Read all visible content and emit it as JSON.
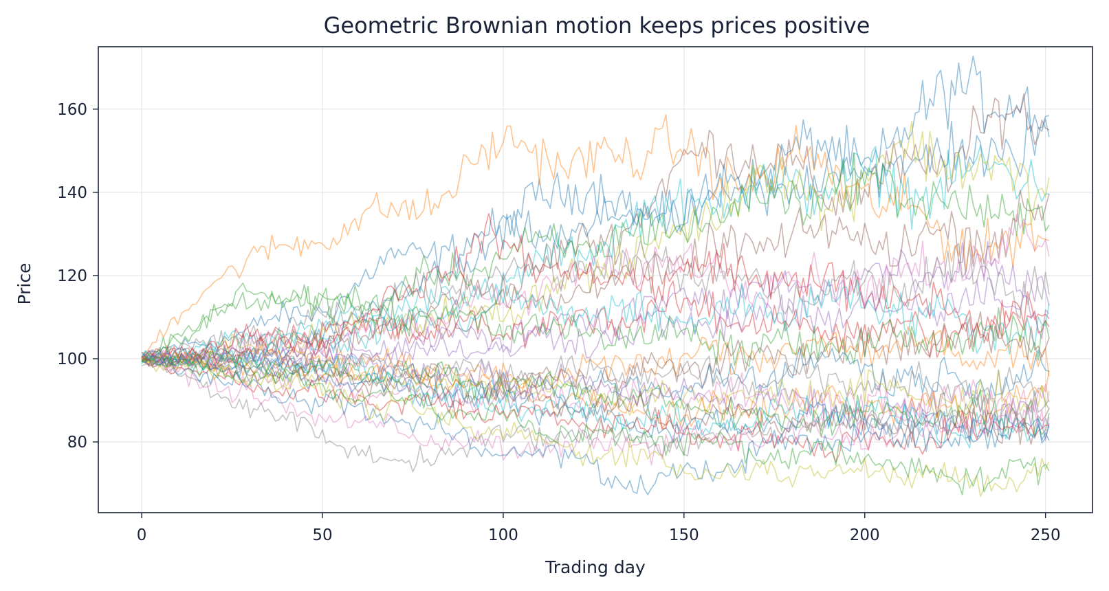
{
  "chart_data": {
    "type": "line",
    "title": "Geometric Brownian motion keeps prices positive",
    "xlabel": "Trading day",
    "ylabel": "Price",
    "xlim": [
      -12,
      263
    ],
    "ylim": [
      63,
      175
    ],
    "xticks": [
      0,
      50,
      100,
      150,
      200,
      250
    ],
    "yticks": [
      80,
      100,
      120,
      140,
      160
    ],
    "grid": true,
    "legend": "none",
    "n_days": 252,
    "colors": [
      "#1f77b4",
      "#ff7f0e",
      "#2ca02c",
      "#d62728",
      "#9467bd",
      "#8c564b",
      "#e377c2",
      "#7f7f7f",
      "#bcbd22",
      "#17becf"
    ],
    "series": [
      {
        "color": "#1f77b4",
        "points": [
          [
            0,
            100
          ],
          [
            50,
            112
          ],
          [
            70,
            124
          ],
          [
            100,
            130
          ],
          [
            110,
            142
          ],
          [
            150,
            134
          ],
          [
            180,
            150
          ],
          [
            200,
            148
          ],
          [
            215,
            156
          ],
          [
            228,
            168
          ],
          [
            251,
            155
          ]
        ]
      },
      {
        "color": "#8c564b",
        "points": [
          [
            0,
            100
          ],
          [
            50,
            104
          ],
          [
            100,
            118
          ],
          [
            130,
            130
          ],
          [
            160,
            153
          ],
          [
            190,
            140
          ],
          [
            215,
            145
          ],
          [
            240,
            158
          ],
          [
            251,
            156
          ]
        ]
      },
      {
        "color": "#17becf",
        "points": [
          [
            0,
            100
          ],
          [
            50,
            108
          ],
          [
            100,
            118
          ],
          [
            150,
            138
          ],
          [
            190,
            143
          ],
          [
            220,
            141
          ],
          [
            240,
            146
          ],
          [
            251,
            144
          ]
        ]
      },
      {
        "color": "#1f77b4",
        "points": [
          [
            0,
            100
          ],
          [
            40,
            101
          ],
          [
            100,
            128
          ],
          [
            150,
            136
          ],
          [
            200,
            146
          ],
          [
            230,
            149
          ],
          [
            251,
            153
          ]
        ]
      },
      {
        "color": "#ff7f0e",
        "points": [
          [
            0,
            100
          ],
          [
            20,
            120
          ],
          [
            50,
            130
          ],
          [
            80,
            138
          ],
          [
            105,
            154
          ],
          [
            120,
            145
          ],
          [
            145,
            153
          ],
          [
            160,
            142
          ],
          [
            180,
            148
          ],
          [
            200,
            141
          ],
          [
            220,
            130
          ],
          [
            240,
            127
          ],
          [
            251,
            129
          ]
        ]
      },
      {
        "color": "#bcbd22",
        "points": [
          [
            0,
            100
          ],
          [
            50,
            106
          ],
          [
            100,
            112
          ],
          [
            150,
            130
          ],
          [
            170,
            145
          ],
          [
            190,
            138
          ],
          [
            215,
            152
          ],
          [
            240,
            142
          ],
          [
            251,
            142
          ]
        ]
      },
      {
        "color": "#2ca02c",
        "points": [
          [
            0,
            100
          ],
          [
            30,
            115
          ],
          [
            60,
            113
          ],
          [
            100,
            125
          ],
          [
            140,
            130
          ],
          [
            180,
            140
          ],
          [
            210,
            142
          ],
          [
            230,
            134
          ],
          [
            251,
            136
          ]
        ]
      },
      {
        "color": "#8c564b",
        "points": [
          [
            0,
            100
          ],
          [
            40,
            103
          ],
          [
            100,
            112
          ],
          [
            140,
            121
          ],
          [
            180,
            130
          ],
          [
            220,
            128
          ],
          [
            240,
            132
          ],
          [
            251,
            135
          ]
        ]
      },
      {
        "color": "#e377c2",
        "points": [
          [
            0,
            100
          ],
          [
            50,
            104
          ],
          [
            100,
            114
          ],
          [
            140,
            124
          ],
          [
            180,
            118
          ],
          [
            220,
            120
          ],
          [
            240,
            128
          ],
          [
            251,
            130
          ]
        ]
      },
      {
        "color": "#9467bd",
        "points": [
          [
            0,
            100
          ],
          [
            50,
            102
          ],
          [
            100,
            106
          ],
          [
            150,
            114
          ],
          [
            200,
            119
          ],
          [
            230,
            121
          ],
          [
            251,
            118
          ]
        ]
      },
      {
        "color": "#7f7f7f",
        "points": [
          [
            0,
            100
          ],
          [
            50,
            109
          ],
          [
            100,
            121
          ],
          [
            140,
            123
          ],
          [
            180,
            115
          ],
          [
            220,
            120
          ],
          [
            251,
            118
          ]
        ]
      },
      {
        "color": "#d62728",
        "points": [
          [
            0,
            100
          ],
          [
            50,
            104
          ],
          [
            95,
            128
          ],
          [
            130,
            118
          ],
          [
            160,
            122
          ],
          [
            200,
            116
          ],
          [
            230,
            110
          ],
          [
            251,
            109
          ]
        ]
      },
      {
        "color": "#d62728",
        "points": [
          [
            0,
            100
          ],
          [
            40,
            107
          ],
          [
            100,
            107
          ],
          [
            150,
            112
          ],
          [
            190,
            107
          ],
          [
            220,
            106
          ],
          [
            251,
            108
          ]
        ]
      },
      {
        "color": "#9467bd",
        "points": [
          [
            0,
            100
          ],
          [
            50,
            100
          ],
          [
            100,
            103
          ],
          [
            150,
            108
          ],
          [
            200,
            112
          ],
          [
            251,
            113
          ]
        ]
      },
      {
        "color": "#17becf",
        "points": [
          [
            0,
            100
          ],
          [
            50,
            104
          ],
          [
            100,
            113
          ],
          [
            150,
            110
          ],
          [
            200,
            115
          ],
          [
            230,
            107
          ],
          [
            251,
            108
          ]
        ]
      },
      {
        "color": "#ff7f0e",
        "points": [
          [
            0,
            100
          ],
          [
            50,
            101
          ],
          [
            100,
            95
          ],
          [
            150,
            100
          ],
          [
            200,
            104
          ],
          [
            230,
            101
          ],
          [
            251,
            99
          ]
        ]
      },
      {
        "color": "#2ca02c",
        "points": [
          [
            0,
            100
          ],
          [
            30,
            116
          ],
          [
            80,
            110
          ],
          [
            130,
            106
          ],
          [
            170,
            103
          ],
          [
            220,
            104
          ],
          [
            251,
            107
          ]
        ]
      },
      {
        "color": "#8c564b",
        "points": [
          [
            0,
            100
          ],
          [
            50,
            97
          ],
          [
            100,
            94
          ],
          [
            150,
            98
          ],
          [
            200,
            103
          ],
          [
            240,
            105
          ],
          [
            251,
            106
          ]
        ]
      },
      {
        "color": "#1f77b4",
        "points": [
          [
            0,
            100
          ],
          [
            50,
            98
          ],
          [
            100,
            92
          ],
          [
            150,
            93
          ],
          [
            190,
            100
          ],
          [
            220,
            94
          ],
          [
            251,
            97
          ]
        ]
      },
      {
        "color": "#7f7f7f",
        "points": [
          [
            0,
            100
          ],
          [
            50,
            100
          ],
          [
            100,
            97
          ],
          [
            150,
            96
          ],
          [
            200,
            94
          ],
          [
            230,
            93
          ],
          [
            251,
            92
          ]
        ]
      },
      {
        "color": "#bcbd22",
        "points": [
          [
            0,
            100
          ],
          [
            50,
            96
          ],
          [
            100,
            93
          ],
          [
            150,
            90
          ],
          [
            200,
            93
          ],
          [
            230,
            90
          ],
          [
            251,
            92
          ]
        ]
      },
      {
        "color": "#e377c2",
        "points": [
          [
            0,
            100
          ],
          [
            50,
            94
          ],
          [
            100,
            90
          ],
          [
            150,
            92
          ],
          [
            200,
            89
          ],
          [
            230,
            91
          ],
          [
            251,
            89
          ]
        ]
      },
      {
        "color": "#ff7f0e",
        "points": [
          [
            0,
            100
          ],
          [
            50,
            97
          ],
          [
            100,
            93
          ],
          [
            150,
            87
          ],
          [
            200,
            90
          ],
          [
            230,
            88
          ],
          [
            251,
            93
          ]
        ]
      },
      {
        "color": "#9467bd",
        "points": [
          [
            0,
            100
          ],
          [
            50,
            100
          ],
          [
            100,
            95
          ],
          [
            150,
            91
          ],
          [
            200,
            87
          ],
          [
            230,
            85
          ],
          [
            251,
            86
          ]
        ]
      },
      {
        "color": "#2ca02c",
        "points": [
          [
            0,
            100
          ],
          [
            50,
            98
          ],
          [
            100,
            94
          ],
          [
            150,
            89
          ],
          [
            180,
            84
          ],
          [
            210,
            88
          ],
          [
            230,
            86
          ],
          [
            251,
            87
          ]
        ]
      },
      {
        "color": "#8c564b",
        "points": [
          [
            0,
            100
          ],
          [
            50,
            96
          ],
          [
            100,
            91
          ],
          [
            150,
            86
          ],
          [
            190,
            85
          ],
          [
            220,
            84
          ],
          [
            251,
            85
          ]
        ]
      },
      {
        "color": "#1f77b4",
        "points": [
          [
            0,
            100
          ],
          [
            50,
            95
          ],
          [
            100,
            90
          ],
          [
            150,
            83
          ],
          [
            190,
            86
          ],
          [
            220,
            84
          ],
          [
            251,
            82
          ]
        ]
      },
      {
        "color": "#17becf",
        "points": [
          [
            0,
            100
          ],
          [
            50,
            99
          ],
          [
            100,
            89
          ],
          [
            150,
            84
          ],
          [
            200,
            88
          ],
          [
            230,
            83
          ],
          [
            251,
            84
          ]
        ]
      },
      {
        "color": "#d62728",
        "points": [
          [
            0,
            100
          ],
          [
            40,
            92
          ],
          [
            100,
            87
          ],
          [
            160,
            82
          ],
          [
            190,
            79
          ],
          [
            220,
            82
          ],
          [
            251,
            85
          ]
        ]
      },
      {
        "color": "#7f7f7f",
        "points": [
          [
            0,
            100
          ],
          [
            45,
            83
          ],
          [
            73,
            74
          ],
          [
            90,
            80
          ],
          [
            120,
            82
          ],
          [
            150,
            80
          ],
          [
            190,
            84
          ],
          [
            230,
            88
          ],
          [
            251,
            88
          ]
        ]
      },
      {
        "color": "#e377c2",
        "points": [
          [
            0,
            100
          ],
          [
            40,
            88
          ],
          [
            70,
            83
          ],
          [
            100,
            78
          ],
          [
            140,
            80
          ],
          [
            180,
            81
          ],
          [
            220,
            83
          ],
          [
            251,
            86
          ]
        ]
      },
      {
        "color": "#1f77b4",
        "points": [
          [
            0,
            100
          ],
          [
            40,
            91
          ],
          [
            70,
            86
          ],
          [
            100,
            78
          ],
          [
            120,
            76
          ],
          [
            137,
            69
          ],
          [
            150,
            72
          ],
          [
            180,
            80
          ],
          [
            210,
            81
          ],
          [
            251,
            84
          ]
        ]
      },
      {
        "color": "#bcbd22",
        "points": [
          [
            0,
            100
          ],
          [
            40,
            94
          ],
          [
            80,
            86
          ],
          [
            110,
            80
          ],
          [
            140,
            76
          ],
          [
            160,
            72
          ],
          [
            190,
            74
          ],
          [
            215,
            72
          ],
          [
            235,
            69
          ],
          [
            251,
            75
          ]
        ]
      },
      {
        "color": "#2ca02c",
        "points": [
          [
            0,
            100
          ],
          [
            40,
            95
          ],
          [
            80,
            89
          ],
          [
            110,
            83
          ],
          [
            140,
            81
          ],
          [
            180,
            77
          ],
          [
            210,
            76
          ],
          [
            225,
            70
          ],
          [
            240,
            74
          ],
          [
            251,
            72
          ]
        ]
      }
    ]
  }
}
